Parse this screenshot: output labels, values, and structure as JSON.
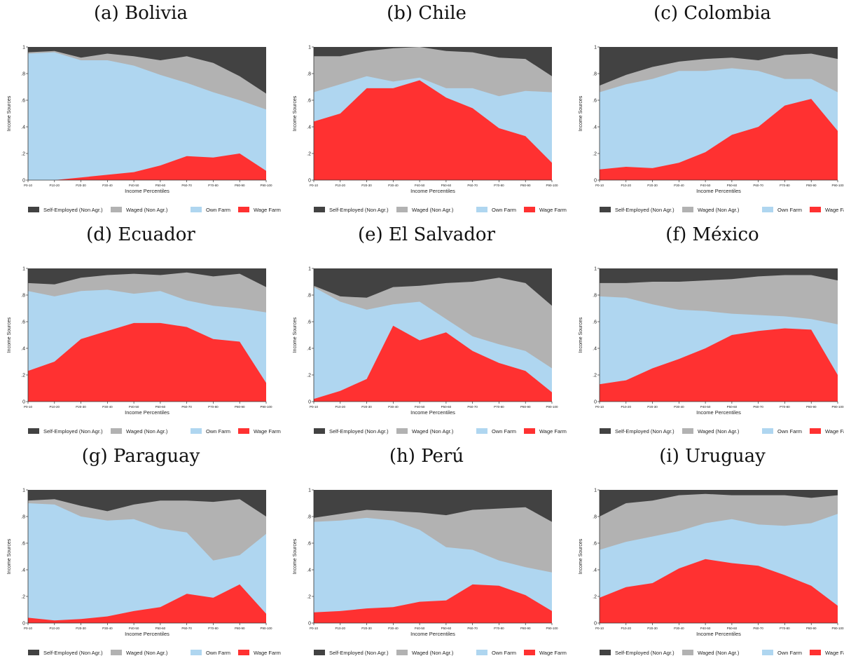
{
  "legend": {
    "items": [
      {
        "label": "Self-Employed (Non Agr.)",
        "color": "#424242"
      },
      {
        "label": "Waged (Non Agr.)",
        "color": "#b2b2b2"
      },
      {
        "label": "Own Farm",
        "color": "#afd6f0"
      },
      {
        "label": "Wage Farm",
        "color": "#ff3131"
      }
    ]
  },
  "chart_data": [
    {
      "type": "area",
      "title": "(a) Bolivia",
      "xlabel": "Income Percentiles",
      "ylabel": "Income Sources",
      "categories": [
        "P0-10",
        "P10-20",
        "P20-30",
        "P30-40",
        "P40-50",
        "P50-60",
        "P60-70",
        "P70-80",
        "P80-90",
        "P90-100"
      ],
      "ylim": [
        0,
        1
      ],
      "yticks": [
        "0",
        ".2",
        ".4",
        ".6",
        ".8",
        "1"
      ],
      "stacked_boundaries": [
        {
          "name": "Wage Farm",
          "values": [
            0.0,
            0.0,
            0.02,
            0.04,
            0.06,
            0.11,
            0.18,
            0.17,
            0.2,
            0.07
          ]
        },
        {
          "name": "Own Farm",
          "values": [
            0.95,
            0.96,
            0.9,
            0.9,
            0.86,
            0.79,
            0.73,
            0.66,
            0.6,
            0.53
          ]
        },
        {
          "name": "Waged (Non Agr.)",
          "values": [
            0.96,
            0.97,
            0.92,
            0.95,
            0.93,
            0.9,
            0.93,
            0.88,
            0.78,
            0.65
          ]
        },
        {
          "name": "Self-Employed (Non Agr.)",
          "values": [
            1,
            1,
            1,
            1,
            1,
            1,
            1,
            1,
            1,
            1
          ]
        }
      ]
    },
    {
      "type": "area",
      "title": "(b) Chile",
      "xlabel": "Income Percentiles",
      "ylabel": "Income Sources",
      "categories": [
        "P0-10",
        "P10-20",
        "P20-30",
        "P30-40",
        "P40-50",
        "P50-60",
        "P60-70",
        "P70-80",
        "P80-90",
        "P90-100"
      ],
      "ylim": [
        0,
        1
      ],
      "yticks": [
        "0",
        ".2",
        ".4",
        ".6",
        ".8",
        "1"
      ],
      "stacked_boundaries": [
        {
          "name": "Wage Farm",
          "values": [
            0.44,
            0.5,
            0.69,
            0.69,
            0.75,
            0.62,
            0.54,
            0.39,
            0.33,
            0.13
          ]
        },
        {
          "name": "Own Farm",
          "values": [
            0.66,
            0.72,
            0.78,
            0.74,
            0.77,
            0.69,
            0.69,
            0.63,
            0.67,
            0.66
          ]
        },
        {
          "name": "Waged (Non Agr.)",
          "values": [
            0.93,
            0.93,
            0.97,
            0.99,
            1.0,
            0.97,
            0.96,
            0.92,
            0.91,
            0.78
          ]
        },
        {
          "name": "Self-Employed (Non Agr.)",
          "values": [
            1,
            1,
            1,
            1,
            1,
            1,
            1,
            1,
            1,
            1
          ]
        }
      ]
    },
    {
      "type": "area",
      "title": "(c) Colombia",
      "xlabel": "Income Percentiles",
      "ylabel": "Income Sources",
      "categories": [
        "P0-10",
        "P10-20",
        "P20-30",
        "P30-40",
        "P40-50",
        "P50-60",
        "P60-70",
        "P70-80",
        "P80-90",
        "P90-100"
      ],
      "ylim": [
        0,
        1
      ],
      "yticks": [
        "0",
        ".2",
        ".4",
        ".6",
        ".8",
        "1"
      ],
      "stacked_boundaries": [
        {
          "name": "Wage Farm",
          "values": [
            0.08,
            0.1,
            0.09,
            0.13,
            0.21,
            0.34,
            0.4,
            0.56,
            0.61,
            0.37
          ]
        },
        {
          "name": "Own Farm",
          "values": [
            0.66,
            0.72,
            0.76,
            0.82,
            0.82,
            0.84,
            0.82,
            0.76,
            0.76,
            0.66
          ]
        },
        {
          "name": "Waged (Non Agr.)",
          "values": [
            0.71,
            0.79,
            0.85,
            0.89,
            0.91,
            0.92,
            0.9,
            0.94,
            0.95,
            0.91
          ]
        },
        {
          "name": "Self-Employed (Non Agr.)",
          "values": [
            1,
            1,
            1,
            1,
            1,
            1,
            1,
            1,
            1,
            1
          ]
        }
      ]
    },
    {
      "type": "area",
      "title": "(d) Ecuador",
      "xlabel": "Income Percentiles",
      "ylabel": "Income Sources",
      "categories": [
        "P0-10",
        "P10-20",
        "P20-30",
        "P30-40",
        "P40-50",
        "P50-60",
        "P60-70",
        "P70-80",
        "P80-90",
        "P90-100"
      ],
      "ylim": [
        0,
        1
      ],
      "yticks": [
        "0",
        ".2",
        ".4",
        ".6",
        ".8",
        "1"
      ],
      "stacked_boundaries": [
        {
          "name": "Wage Farm",
          "values": [
            0.23,
            0.3,
            0.47,
            0.53,
            0.59,
            0.59,
            0.56,
            0.47,
            0.45,
            0.14
          ]
        },
        {
          "name": "Own Farm",
          "values": [
            0.83,
            0.79,
            0.83,
            0.84,
            0.81,
            0.83,
            0.76,
            0.72,
            0.7,
            0.67
          ]
        },
        {
          "name": "Waged (Non Agr.)",
          "values": [
            0.89,
            0.88,
            0.93,
            0.95,
            0.96,
            0.95,
            0.97,
            0.94,
            0.96,
            0.86
          ]
        },
        {
          "name": "Self-Employed (Non Agr.)",
          "values": [
            1,
            1,
            1,
            1,
            1,
            1,
            1,
            1,
            1,
            1
          ]
        }
      ]
    },
    {
      "type": "area",
      "title": "(e) El Salvador",
      "xlabel": "Income Percentiles",
      "ylabel": "Income Sources",
      "categories": [
        "P0-10",
        "P10-20",
        "P20-30",
        "P30-40",
        "P40-50",
        "P50-60",
        "P60-70",
        "P70-80",
        "P80-90",
        "P90-100"
      ],
      "ylim": [
        0,
        1
      ],
      "yticks": [
        "0",
        ".2",
        ".4",
        ".6",
        ".8",
        "1"
      ],
      "stacked_boundaries": [
        {
          "name": "Wage Farm",
          "values": [
            0.02,
            0.08,
            0.17,
            0.57,
            0.46,
            0.52,
            0.38,
            0.29,
            0.23,
            0.07
          ]
        },
        {
          "name": "Own Farm",
          "values": [
            0.86,
            0.75,
            0.69,
            0.73,
            0.75,
            0.62,
            0.49,
            0.43,
            0.38,
            0.25
          ]
        },
        {
          "name": "Waged (Non Agr.)",
          "values": [
            0.87,
            0.79,
            0.78,
            0.86,
            0.87,
            0.89,
            0.9,
            0.93,
            0.89,
            0.72
          ]
        },
        {
          "name": "Self-Employed (Non Agr.)",
          "values": [
            1,
            1,
            1,
            1,
            1,
            1,
            1,
            1,
            1,
            1
          ]
        }
      ]
    },
    {
      "type": "area",
      "title": "(f) México",
      "xlabel": "Income Percentiles",
      "ylabel": "Income Sources",
      "categories": [
        "P0-10",
        "P10-20",
        "P20-30",
        "P30-40",
        "P40-50",
        "P50-60",
        "P60-70",
        "P70-80",
        "P80-90",
        "P90-100"
      ],
      "ylim": [
        0,
        1
      ],
      "yticks": [
        "0",
        ".2",
        ".4",
        ".6",
        ".8",
        "1"
      ],
      "stacked_boundaries": [
        {
          "name": "Wage Farm",
          "values": [
            0.13,
            0.16,
            0.25,
            0.32,
            0.4,
            0.5,
            0.53,
            0.55,
            0.54,
            0.2
          ]
        },
        {
          "name": "Own Farm",
          "values": [
            0.79,
            0.78,
            0.73,
            0.69,
            0.68,
            0.66,
            0.65,
            0.64,
            0.62,
            0.58
          ]
        },
        {
          "name": "Waged (Non Agr.)",
          "values": [
            0.89,
            0.89,
            0.9,
            0.9,
            0.91,
            0.92,
            0.94,
            0.95,
            0.95,
            0.91
          ]
        },
        {
          "name": "Self-Employed (Non Agr.)",
          "values": [
            1,
            1,
            1,
            1,
            1,
            1,
            1,
            1,
            1,
            1
          ]
        }
      ]
    },
    {
      "type": "area",
      "title": "(g) Paraguay",
      "xlabel": "Income Percentiles",
      "ylabel": "Income Sources",
      "categories": [
        "P0-10",
        "P10-20",
        "P20-30",
        "P30-40",
        "P40-50",
        "P50-60",
        "P60-70",
        "P70-80",
        "P80-90",
        "P90-100"
      ],
      "ylim": [
        0,
        1
      ],
      "yticks": [
        "0",
        ".2",
        ".4",
        ".6",
        ".8",
        "1"
      ],
      "stacked_boundaries": [
        {
          "name": "Wage Farm",
          "values": [
            0.04,
            0.02,
            0.03,
            0.05,
            0.09,
            0.12,
            0.22,
            0.19,
            0.29,
            0.07
          ]
        },
        {
          "name": "Own Farm",
          "values": [
            0.9,
            0.89,
            0.8,
            0.77,
            0.78,
            0.71,
            0.68,
            0.47,
            0.51,
            0.67
          ]
        },
        {
          "name": "Waged (Non Agr.)",
          "values": [
            0.92,
            0.93,
            0.88,
            0.84,
            0.89,
            0.92,
            0.92,
            0.91,
            0.93,
            0.8
          ]
        },
        {
          "name": "Self-Employed (Non Agr.)",
          "values": [
            1,
            1,
            1,
            1,
            1,
            1,
            1,
            1,
            1,
            1
          ]
        }
      ]
    },
    {
      "type": "area",
      "title": "(h) Perú",
      "xlabel": "Income Percentiles",
      "ylabel": "Income Sources",
      "categories": [
        "P0-10",
        "P10-20",
        "P20-30",
        "P30-40",
        "P40-50",
        "P50-60",
        "P60-70",
        "P70-80",
        "P80-90",
        "P90-100"
      ],
      "ylim": [
        0,
        1
      ],
      "yticks": [
        "0",
        ".2",
        ".4",
        ".6",
        ".8",
        "1"
      ],
      "stacked_boundaries": [
        {
          "name": "Wage Farm",
          "values": [
            0.08,
            0.09,
            0.11,
            0.12,
            0.16,
            0.17,
            0.29,
            0.28,
            0.21,
            0.09
          ]
        },
        {
          "name": "Own Farm",
          "values": [
            0.76,
            0.77,
            0.79,
            0.77,
            0.7,
            0.57,
            0.55,
            0.47,
            0.42,
            0.38
          ]
        },
        {
          "name": "Waged (Non Agr.)",
          "values": [
            0.79,
            0.82,
            0.85,
            0.84,
            0.83,
            0.81,
            0.85,
            0.86,
            0.87,
            0.76
          ]
        },
        {
          "name": "Self-Employed (Non Agr.)",
          "values": [
            1,
            1,
            1,
            1,
            1,
            1,
            1,
            1,
            1,
            1
          ]
        }
      ]
    },
    {
      "type": "area",
      "title": "(i) Uruguay",
      "xlabel": "Income Percentiles",
      "ylabel": "Income Sources",
      "categories": [
        "P0-10",
        "P10-20",
        "P20-30",
        "P30-40",
        "P40-50",
        "P50-60",
        "P60-70",
        "P70-80",
        "P80-90",
        "P90-100"
      ],
      "ylim": [
        0,
        1
      ],
      "yticks": [
        "0",
        ".2",
        ".4",
        ".6",
        ".8",
        "1"
      ],
      "stacked_boundaries": [
        {
          "name": "Wage Farm",
          "values": [
            0.19,
            0.27,
            0.3,
            0.41,
            0.48,
            0.45,
            0.43,
            0.36,
            0.28,
            0.13
          ]
        },
        {
          "name": "Own Farm",
          "values": [
            0.55,
            0.61,
            0.65,
            0.69,
            0.75,
            0.78,
            0.74,
            0.73,
            0.75,
            0.82
          ]
        },
        {
          "name": "Waged (Non Agr.)",
          "values": [
            0.8,
            0.9,
            0.92,
            0.96,
            0.97,
            0.96,
            0.96,
            0.96,
            0.94,
            0.96
          ]
        },
        {
          "name": "Self-Employed (Non Agr.)",
          "values": [
            1,
            1,
            1,
            1,
            1,
            1,
            1,
            1,
            1,
            1
          ]
        }
      ]
    }
  ]
}
